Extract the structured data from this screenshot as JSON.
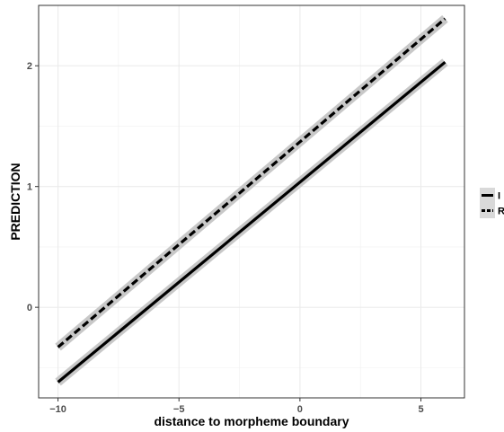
{
  "chart_data": {
    "type": "line",
    "title": "",
    "xlabel": "distance to morpheme boundary",
    "ylabel": "PREDICTION",
    "xlim": [
      -10.8,
      6.8
    ],
    "ylim": [
      -0.75,
      2.5
    ],
    "x_ticks": [
      -10,
      -5,
      0,
      5
    ],
    "x_tick_labels": [
      "−10",
      "−5",
      "0",
      "5"
    ],
    "y_ticks": [
      0,
      1,
      2
    ],
    "y_tick_labels": [
      "0",
      "1",
      "2"
    ],
    "grid": true,
    "legend_position": "right",
    "series": [
      {
        "name": "I",
        "line_style": "solid",
        "color": "#000000",
        "ribbon_color": "#c8c8c8",
        "x": [
          -10,
          6
        ],
        "y": [
          -0.62,
          2.03
        ]
      },
      {
        "name": "R",
        "line_style": "dashed",
        "color": "#000000",
        "ribbon_color": "#c8c8c8",
        "x": [
          -10,
          6
        ],
        "y": [
          -0.33,
          2.39
        ]
      }
    ]
  }
}
